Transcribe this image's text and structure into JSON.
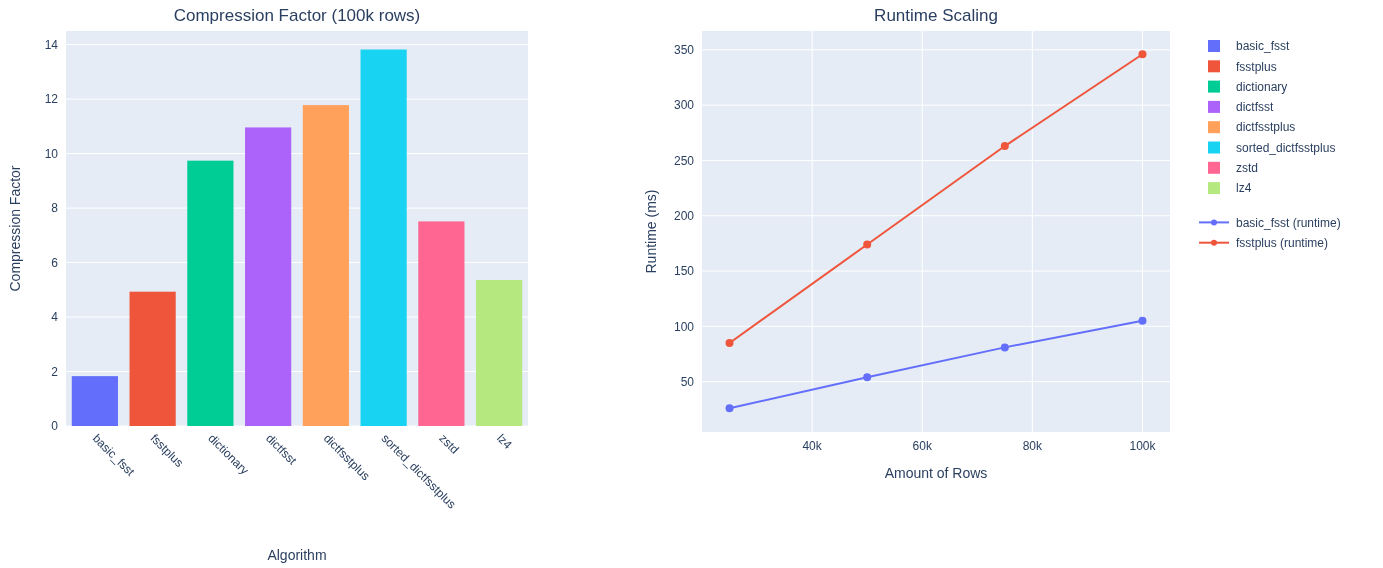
{
  "chart_data": [
    {
      "type": "bar",
      "title": "Compression Factor (100k rows)",
      "xlabel": "Algorithm",
      "ylabel": "Compression Factor",
      "categories": [
        "basic_fsst",
        "fsstplus",
        "dictionary",
        "dictfsst",
        "dictfsstplus",
        "sorted_dictfsstplus",
        "zstd",
        "lz4"
      ],
      "series": [
        {
          "name": "basic_fsst",
          "color": "#636efa",
          "values": [
            1.83,
            null,
            null,
            null,
            null,
            null,
            null,
            null
          ]
        },
        {
          "name": "fsstplus",
          "color": "#ef553b",
          "values": [
            null,
            4.93,
            null,
            null,
            null,
            null,
            null,
            null
          ]
        },
        {
          "name": "dictionary",
          "color": "#00cc96",
          "values": [
            null,
            null,
            9.74,
            null,
            null,
            null,
            null,
            null
          ]
        },
        {
          "name": "dictfsst",
          "color": "#ab63fa",
          "values": [
            null,
            null,
            null,
            10.96,
            null,
            null,
            null,
            null
          ]
        },
        {
          "name": "dictfsstplus",
          "color": "#ffa15a",
          "values": [
            null,
            null,
            null,
            null,
            11.78,
            null,
            null,
            null
          ]
        },
        {
          "name": "sorted_dictfsstplus",
          "color": "#19d3f3",
          "values": [
            null,
            null,
            null,
            null,
            null,
            13.82,
            null,
            null
          ]
        },
        {
          "name": "zstd",
          "color": "#ff6692",
          "values": [
            null,
            null,
            null,
            null,
            null,
            null,
            7.51,
            null
          ]
        },
        {
          "name": "lz4",
          "color": "#b6e880",
          "values": [
            null,
            null,
            null,
            null,
            null,
            null,
            null,
            5.36
          ]
        }
      ],
      "ylim": [
        0,
        14.5
      ],
      "yticks": [
        0,
        2,
        4,
        6,
        8,
        10,
        12,
        14
      ],
      "grid": "y",
      "legend": "right"
    },
    {
      "type": "line",
      "title": "Runtime Scaling",
      "xlabel": "Amount of Rows",
      "ylabel": "Runtime (ms)",
      "x": [
        25000,
        50000,
        75000,
        100000
      ],
      "series": [
        {
          "name": "basic_fsst (runtime)",
          "color": "#636efa",
          "values": [
            26,
            54,
            81,
            105
          ]
        },
        {
          "name": "fsstplus (runtime)",
          "color": "#ef553b",
          "values": [
            85,
            174,
            263,
            346
          ]
        }
      ],
      "xlim": [
        20000,
        105000
      ],
      "xticks": [
        {
          "value": 40000,
          "label": "40k"
        },
        {
          "value": 60000,
          "label": "60k"
        },
        {
          "value": 80000,
          "label": "80k"
        },
        {
          "value": 100000,
          "label": "100k"
        }
      ],
      "ylim": [
        4.5,
        367
      ],
      "yticks": [
        50,
        100,
        150,
        200,
        250,
        300,
        350
      ],
      "grid": true,
      "legend": "right",
      "marker": "circle",
      "line_style": "solid"
    }
  ]
}
